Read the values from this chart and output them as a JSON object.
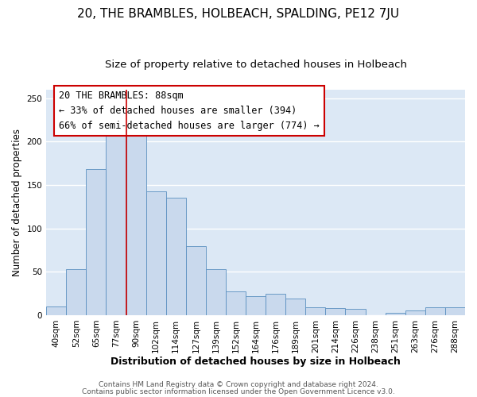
{
  "title": "20, THE BRAMBLES, HOLBEACH, SPALDING, PE12 7JU",
  "subtitle": "Size of property relative to detached houses in Holbeach",
  "xlabel": "Distribution of detached houses by size in Holbeach",
  "ylabel": "Number of detached properties",
  "bin_labels": [
    "40sqm",
    "52sqm",
    "65sqm",
    "77sqm",
    "90sqm",
    "102sqm",
    "114sqm",
    "127sqm",
    "139sqm",
    "152sqm",
    "164sqm",
    "176sqm",
    "189sqm",
    "201sqm",
    "214sqm",
    "226sqm",
    "238sqm",
    "251sqm",
    "263sqm",
    "276sqm",
    "288sqm"
  ],
  "bar_heights": [
    10,
    53,
    168,
    207,
    210,
    143,
    135,
    80,
    53,
    27,
    22,
    25,
    19,
    9,
    8,
    7,
    0,
    3,
    5,
    9,
    9
  ],
  "bar_color": "#c9d9ed",
  "bar_edge_color": "#5a8fc0",
  "red_line_x": 4,
  "annotation_box_text": "20 THE BRAMBLES: 88sqm\n← 33% of detached houses are smaller (394)\n66% of semi-detached houses are larger (774) →",
  "red_line_color": "#cc0000",
  "footer1": "Contains HM Land Registry data © Crown copyright and database right 2024.",
  "footer2": "Contains public sector information licensed under the Open Government Licence v3.0.",
  "ylim": [
    0,
    260
  ],
  "bg_color": "#ffffff",
  "plot_bg_color": "#dce8f5",
  "grid_color": "#ffffff",
  "title_fontsize": 11,
  "subtitle_fontsize": 9.5,
  "tick_fontsize": 7.5,
  "ylabel_fontsize": 8.5,
  "xlabel_fontsize": 9,
  "footer_fontsize": 6.5,
  "ann_fontsize": 8.5
}
